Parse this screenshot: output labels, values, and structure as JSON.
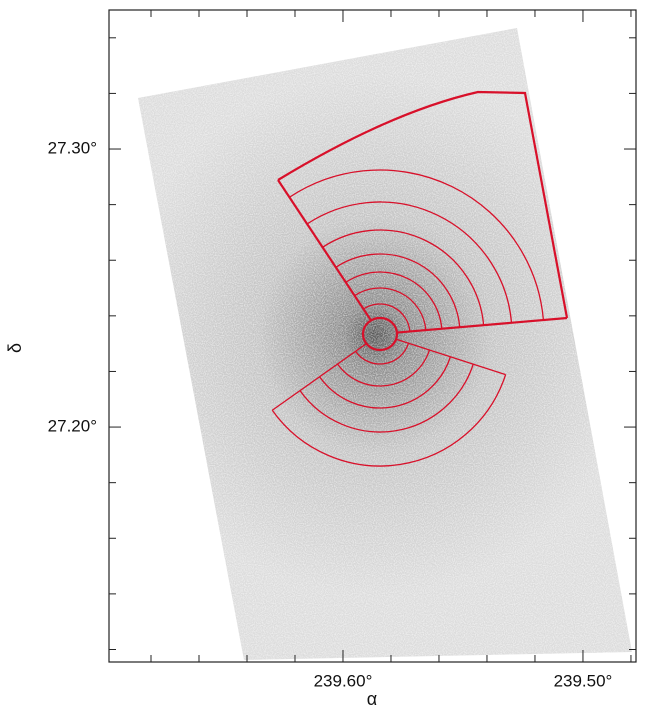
{
  "chart_data": {
    "type": "image",
    "xlabel": "α",
    "ylabel": "δ",
    "xlim": [
      239.6975,
      239.4779
    ],
    "ylim": [
      27.1155,
      27.35
    ],
    "xticks": [
      {
        "value": 239.6,
        "label": "239.60°"
      },
      {
        "value": 239.5,
        "label": "239.50°"
      }
    ],
    "yticks": [
      {
        "value": 27.2,
        "label": "27.20°"
      },
      {
        "value": 27.3,
        "label": "27.30°"
      }
    ],
    "xminorticks": [
      239.68,
      239.66,
      239.64,
      239.62,
      239.58,
      239.56,
      239.54,
      239.52,
      239.48
    ],
    "yminorticks": [
      27.12,
      27.14,
      27.16,
      27.18,
      27.22,
      27.24,
      27.26,
      27.28,
      27.32,
      27.34
    ],
    "color": "#d8102a"
  }
}
